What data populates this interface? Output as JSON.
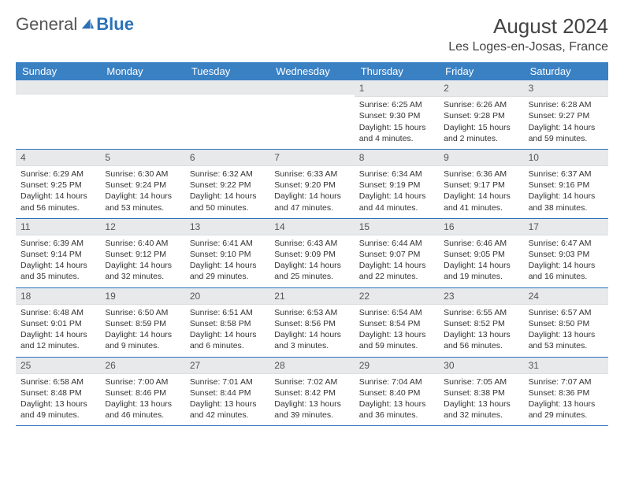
{
  "logo": {
    "text1": "General",
    "text2": "Blue"
  },
  "title": "August 2024",
  "location": "Les Loges-en-Josas, France",
  "colors": {
    "header_bg": "#3a81c4",
    "header_text": "#ffffff",
    "date_bar_bg": "#e7e9eb",
    "week_border": "#2a71b8",
    "logo_blue": "#2a71b8",
    "body_text": "#333333"
  },
  "typography": {
    "title_fontsize": 26,
    "location_fontsize": 16,
    "dayheader_fontsize": 13,
    "cell_fontsize": 10.5
  },
  "day_names": [
    "Sunday",
    "Monday",
    "Tuesday",
    "Wednesday",
    "Thursday",
    "Friday",
    "Saturday"
  ],
  "weeks": [
    [
      {
        "date": "",
        "sunrise": "",
        "sunset": "",
        "daylight": ""
      },
      {
        "date": "",
        "sunrise": "",
        "sunset": "",
        "daylight": ""
      },
      {
        "date": "",
        "sunrise": "",
        "sunset": "",
        "daylight": ""
      },
      {
        "date": "",
        "sunrise": "",
        "sunset": "",
        "daylight": ""
      },
      {
        "date": "1",
        "sunrise": "Sunrise: 6:25 AM",
        "sunset": "Sunset: 9:30 PM",
        "daylight": "Daylight: 15 hours and 4 minutes."
      },
      {
        "date": "2",
        "sunrise": "Sunrise: 6:26 AM",
        "sunset": "Sunset: 9:28 PM",
        "daylight": "Daylight: 15 hours and 2 minutes."
      },
      {
        "date": "3",
        "sunrise": "Sunrise: 6:28 AM",
        "sunset": "Sunset: 9:27 PM",
        "daylight": "Daylight: 14 hours and 59 minutes."
      }
    ],
    [
      {
        "date": "4",
        "sunrise": "Sunrise: 6:29 AM",
        "sunset": "Sunset: 9:25 PM",
        "daylight": "Daylight: 14 hours and 56 minutes."
      },
      {
        "date": "5",
        "sunrise": "Sunrise: 6:30 AM",
        "sunset": "Sunset: 9:24 PM",
        "daylight": "Daylight: 14 hours and 53 minutes."
      },
      {
        "date": "6",
        "sunrise": "Sunrise: 6:32 AM",
        "sunset": "Sunset: 9:22 PM",
        "daylight": "Daylight: 14 hours and 50 minutes."
      },
      {
        "date": "7",
        "sunrise": "Sunrise: 6:33 AM",
        "sunset": "Sunset: 9:20 PM",
        "daylight": "Daylight: 14 hours and 47 minutes."
      },
      {
        "date": "8",
        "sunrise": "Sunrise: 6:34 AM",
        "sunset": "Sunset: 9:19 PM",
        "daylight": "Daylight: 14 hours and 44 minutes."
      },
      {
        "date": "9",
        "sunrise": "Sunrise: 6:36 AM",
        "sunset": "Sunset: 9:17 PM",
        "daylight": "Daylight: 14 hours and 41 minutes."
      },
      {
        "date": "10",
        "sunrise": "Sunrise: 6:37 AM",
        "sunset": "Sunset: 9:16 PM",
        "daylight": "Daylight: 14 hours and 38 minutes."
      }
    ],
    [
      {
        "date": "11",
        "sunrise": "Sunrise: 6:39 AM",
        "sunset": "Sunset: 9:14 PM",
        "daylight": "Daylight: 14 hours and 35 minutes."
      },
      {
        "date": "12",
        "sunrise": "Sunrise: 6:40 AM",
        "sunset": "Sunset: 9:12 PM",
        "daylight": "Daylight: 14 hours and 32 minutes."
      },
      {
        "date": "13",
        "sunrise": "Sunrise: 6:41 AM",
        "sunset": "Sunset: 9:10 PM",
        "daylight": "Daylight: 14 hours and 29 minutes."
      },
      {
        "date": "14",
        "sunrise": "Sunrise: 6:43 AM",
        "sunset": "Sunset: 9:09 PM",
        "daylight": "Daylight: 14 hours and 25 minutes."
      },
      {
        "date": "15",
        "sunrise": "Sunrise: 6:44 AM",
        "sunset": "Sunset: 9:07 PM",
        "daylight": "Daylight: 14 hours and 22 minutes."
      },
      {
        "date": "16",
        "sunrise": "Sunrise: 6:46 AM",
        "sunset": "Sunset: 9:05 PM",
        "daylight": "Daylight: 14 hours and 19 minutes."
      },
      {
        "date": "17",
        "sunrise": "Sunrise: 6:47 AM",
        "sunset": "Sunset: 9:03 PM",
        "daylight": "Daylight: 14 hours and 16 minutes."
      }
    ],
    [
      {
        "date": "18",
        "sunrise": "Sunrise: 6:48 AM",
        "sunset": "Sunset: 9:01 PM",
        "daylight": "Daylight: 14 hours and 12 minutes."
      },
      {
        "date": "19",
        "sunrise": "Sunrise: 6:50 AM",
        "sunset": "Sunset: 8:59 PM",
        "daylight": "Daylight: 14 hours and 9 minutes."
      },
      {
        "date": "20",
        "sunrise": "Sunrise: 6:51 AM",
        "sunset": "Sunset: 8:58 PM",
        "daylight": "Daylight: 14 hours and 6 minutes."
      },
      {
        "date": "21",
        "sunrise": "Sunrise: 6:53 AM",
        "sunset": "Sunset: 8:56 PM",
        "daylight": "Daylight: 14 hours and 3 minutes."
      },
      {
        "date": "22",
        "sunrise": "Sunrise: 6:54 AM",
        "sunset": "Sunset: 8:54 PM",
        "daylight": "Daylight: 13 hours and 59 minutes."
      },
      {
        "date": "23",
        "sunrise": "Sunrise: 6:55 AM",
        "sunset": "Sunset: 8:52 PM",
        "daylight": "Daylight: 13 hours and 56 minutes."
      },
      {
        "date": "24",
        "sunrise": "Sunrise: 6:57 AM",
        "sunset": "Sunset: 8:50 PM",
        "daylight": "Daylight: 13 hours and 53 minutes."
      }
    ],
    [
      {
        "date": "25",
        "sunrise": "Sunrise: 6:58 AM",
        "sunset": "Sunset: 8:48 PM",
        "daylight": "Daylight: 13 hours and 49 minutes."
      },
      {
        "date": "26",
        "sunrise": "Sunrise: 7:00 AM",
        "sunset": "Sunset: 8:46 PM",
        "daylight": "Daylight: 13 hours and 46 minutes."
      },
      {
        "date": "27",
        "sunrise": "Sunrise: 7:01 AM",
        "sunset": "Sunset: 8:44 PM",
        "daylight": "Daylight: 13 hours and 42 minutes."
      },
      {
        "date": "28",
        "sunrise": "Sunrise: 7:02 AM",
        "sunset": "Sunset: 8:42 PM",
        "daylight": "Daylight: 13 hours and 39 minutes."
      },
      {
        "date": "29",
        "sunrise": "Sunrise: 7:04 AM",
        "sunset": "Sunset: 8:40 PM",
        "daylight": "Daylight: 13 hours and 36 minutes."
      },
      {
        "date": "30",
        "sunrise": "Sunrise: 7:05 AM",
        "sunset": "Sunset: 8:38 PM",
        "daylight": "Daylight: 13 hours and 32 minutes."
      },
      {
        "date": "31",
        "sunrise": "Sunrise: 7:07 AM",
        "sunset": "Sunset: 8:36 PM",
        "daylight": "Daylight: 13 hours and 29 minutes."
      }
    ]
  ]
}
